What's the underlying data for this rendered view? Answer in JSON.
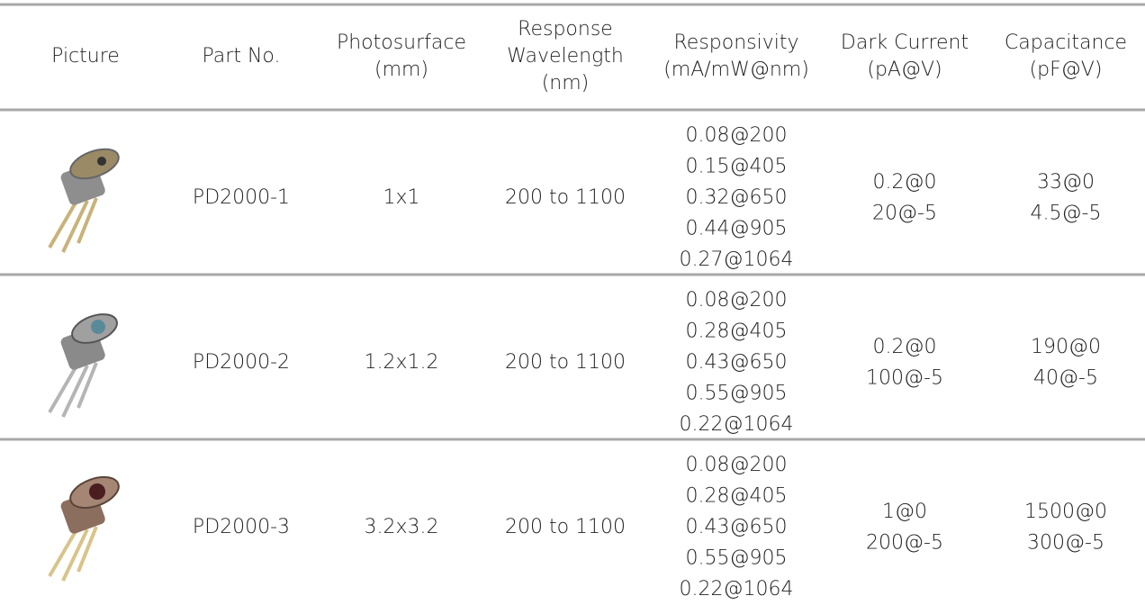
{
  "table": {
    "header": [
      [
        "Picture"
      ],
      [
        "Part No."
      ],
      [
        "Photosurface",
        "(mm)"
      ],
      [
        "Response",
        "Wavelength",
        "(nm)"
      ],
      [
        "Responsivity",
        "(mA/mW@nm)"
      ],
      [
        "Dark Current",
        "(pA@V)"
      ],
      [
        "Capacitance",
        "(pF@V)"
      ]
    ],
    "rows": [
      [
        [
          "PD2000-1"
        ],
        [
          "1x1"
        ],
        [
          "200 to 1100"
        ],
        [
          "0.08@200",
          "0.15@405",
          "0.32@650",
          "0.44@905",
          "0.27@1064"
        ],
        [
          "0.2@0",
          "20@-5"
        ],
        [
          "33@0",
          "4.5@-5"
        ]
      ],
      [
        [
          "PD2000-2"
        ],
        [
          "1.2x1.2"
        ],
        [
          "200 to 1100"
        ],
        [
          "0.08@200",
          "0.28@405",
          "0.43@650",
          "0.55@905",
          "0.22@1064"
        ],
        [
          "0.2@0",
          "100@-5"
        ],
        [
          "190@0",
          "40@-5"
        ]
      ],
      [
        [
          "PD2000-3"
        ],
        [
          "3.2x3.2"
        ],
        [
          "200 to 1100"
        ],
        [
          "0.08@200",
          "0.28@405",
          "0.43@650",
          "0.55@905",
          "0.22@1064"
        ],
        [
          "1@0",
          "200@-5"
        ],
        [
          "1500@0",
          "300@-5"
        ]
      ]
    ]
  }
}
